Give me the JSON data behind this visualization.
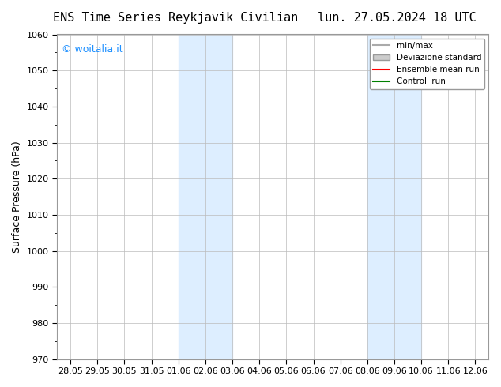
{
  "title_left": "ENS Time Series Reykjavik Civilian",
  "title_right": "lun. 27.05.2024 18 UTC",
  "ylabel": "Surface Pressure (hPa)",
  "ylim": [
    970,
    1060
  ],
  "yticks": [
    970,
    980,
    990,
    1000,
    1010,
    1020,
    1030,
    1040,
    1050,
    1060
  ],
  "x_labels": [
    "28.05",
    "29.05",
    "30.05",
    "31.05",
    "01.06",
    "02.06",
    "03.06",
    "04.06",
    "05.06",
    "06.06",
    "07.06",
    "08.06",
    "09.06",
    "10.06",
    "11.06",
    "12.06"
  ],
  "shaded_bands": [
    {
      "x_start": "01.06",
      "x_end": "03.06"
    },
    {
      "x_start": "08.06",
      "x_end": "10.06"
    }
  ],
  "watermark": "© woitalia.it",
  "watermark_color": "#1E90FF",
  "legend_entries": [
    {
      "label": "min/max",
      "color": "#aaaaaa",
      "lw": 1.5,
      "style": "-"
    },
    {
      "label": "Deviazione standard",
      "color": "#cccccc",
      "lw": 6,
      "style": "-"
    },
    {
      "label": "Ensemble mean run",
      "color": "red",
      "lw": 1.5,
      "style": "-"
    },
    {
      "label": "Controll run",
      "color": "green",
      "lw": 1.5,
      "style": "-"
    }
  ],
  "background_color": "#ffffff",
  "plot_bg_color": "#ffffff",
  "grid_color": "#bbbbbb",
  "title_fontsize": 11,
  "axis_label_fontsize": 9,
  "tick_fontsize": 8
}
